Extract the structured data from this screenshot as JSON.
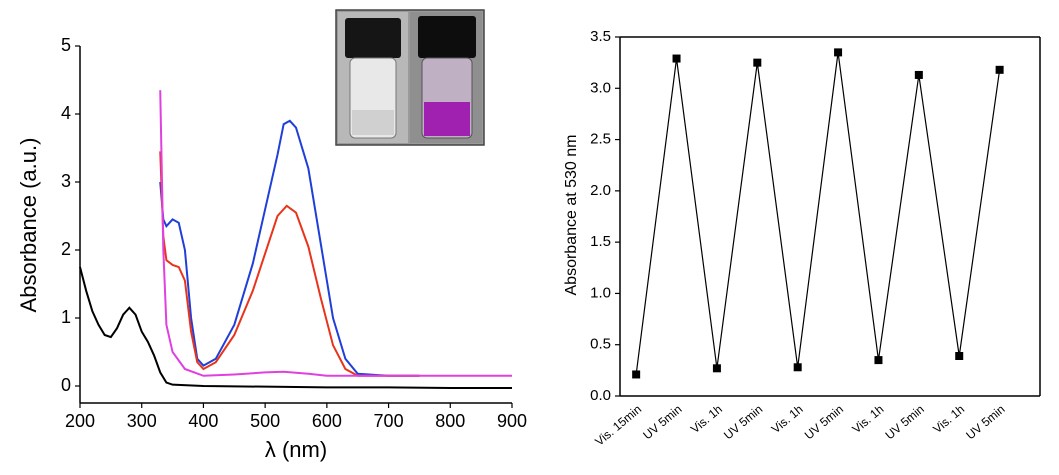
{
  "chart_data": [
    {
      "type": "line",
      "xlabel": "λ (nm)",
      "ylabel": "Absorbance (a.u.)",
      "xlim": [
        200,
        900
      ],
      "xticks": [
        200,
        300,
        400,
        500,
        600,
        700,
        800,
        900
      ],
      "ylim": [
        -0.25,
        5
      ],
      "yticks": [
        0,
        1,
        2,
        3,
        4,
        5
      ],
      "series": [
        {
          "color": "#000000",
          "x": [
            200,
            210,
            220,
            230,
            240,
            250,
            260,
            270,
            280,
            290,
            300,
            310,
            320,
            330,
            340,
            350,
            400,
            500,
            600,
            700,
            800,
            900
          ],
          "values": [
            1.75,
            1.4,
            1.1,
            0.9,
            0.75,
            0.72,
            0.85,
            1.05,
            1.15,
            1.05,
            0.8,
            0.65,
            0.45,
            0.2,
            0.05,
            0.02,
            0.0,
            -0.01,
            -0.02,
            -0.02,
            -0.03,
            -0.03
          ]
        },
        {
          "color": "#1f3fd8",
          "x": [
            330,
            335,
            340,
            350,
            360,
            370,
            380,
            390,
            400,
            420,
            450,
            480,
            500,
            520,
            530,
            540,
            550,
            570,
            590,
            610,
            630,
            650,
            700,
            750
          ],
          "values": [
            3.0,
            2.45,
            2.35,
            2.45,
            2.4,
            2.0,
            1.0,
            0.4,
            0.3,
            0.4,
            0.9,
            1.8,
            2.6,
            3.4,
            3.85,
            3.9,
            3.8,
            3.2,
            2.1,
            1.0,
            0.4,
            0.18,
            0.15,
            0.15
          ]
        },
        {
          "color": "#e8341c",
          "x": [
            330,
            335,
            340,
            350,
            360,
            370,
            380,
            390,
            400,
            420,
            450,
            480,
            500,
            520,
            535,
            550,
            570,
            590,
            610,
            630,
            650,
            700,
            750
          ],
          "values": [
            3.45,
            2.2,
            1.85,
            1.78,
            1.75,
            1.55,
            0.8,
            0.35,
            0.25,
            0.35,
            0.75,
            1.4,
            1.95,
            2.5,
            2.65,
            2.55,
            2.05,
            1.3,
            0.6,
            0.25,
            0.15,
            0.15,
            0.15
          ]
        },
        {
          "color": "#e040e0",
          "x": [
            330,
            335,
            340,
            350,
            370,
            400,
            450,
            500,
            530,
            570,
            600,
            700,
            800,
            900
          ],
          "values": [
            4.35,
            2.0,
            0.9,
            0.5,
            0.25,
            0.15,
            0.17,
            0.2,
            0.21,
            0.18,
            0.15,
            0.15,
            0.15,
            0.15
          ]
        }
      ]
    },
    {
      "type": "line",
      "ylabel": "Absorbance at 530 nm",
      "categories": [
        "Vis. 15min",
        "UV 5min",
        "Vis. 1h",
        "UV 5min",
        "Vis. 1h",
        "UV 5min",
        "Vis. 1h",
        "UV 5min",
        "Vis. 1h",
        "UV 5min"
      ],
      "values": [
        0.21,
        3.29,
        0.27,
        3.25,
        0.28,
        3.35,
        0.35,
        3.13,
        0.39,
        3.18
      ],
      "color": "#000000",
      "ylim": [
        0,
        3.5
      ],
      "yticks": [
        {
          "value": 0,
          "label": "0.0"
        },
        0.5,
        {
          "value": 1,
          "label": "1.0"
        },
        1.5,
        {
          "value": 2,
          "label": "2.0"
        },
        2.5,
        {
          "value": 3,
          "label": "3.0"
        },
        3.5
      ]
    }
  ]
}
